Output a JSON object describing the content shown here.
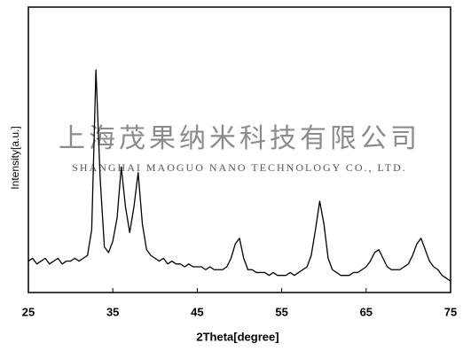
{
  "chart_data": {
    "type": "line",
    "xlabel": "2Theta[degree]",
    "ylabel": "Intensity[a.u.]",
    "watermark": "上海茂果纳米科技有限公司",
    "watermark_en": "SHANGHAI MAOGUO NANO TECHNOLOGY CO., LTD.",
    "color": "#000000",
    "x": [
      25,
      25.5,
      26,
      26.5,
      27,
      27.5,
      28,
      28.5,
      29,
      29.5,
      30,
      30.5,
      31,
      31.5,
      32,
      32.5,
      33,
      33.5,
      34,
      34.5,
      35,
      35.5,
      36,
      36.5,
      37,
      37.5,
      38,
      38.5,
      39,
      39.5,
      40,
      40.5,
      41,
      41.5,
      42,
      42.5,
      43,
      43.5,
      44,
      44.5,
      45,
      45.5,
      46,
      46.5,
      47,
      47.5,
      48,
      48.5,
      49,
      49.5,
      50,
      50.5,
      51,
      51.5,
      52,
      52.5,
      53,
      53.5,
      54,
      54.5,
      55,
      55.5,
      56,
      56.5,
      57,
      57.5,
      58,
      58.5,
      59,
      59.5,
      60,
      60.5,
      61,
      61.5,
      62,
      62.5,
      63,
      63.5,
      64,
      64.5,
      65,
      65.5,
      66,
      66.5,
      67,
      67.5,
      68,
      68.5,
      69,
      69.5,
      70,
      70.5,
      71,
      71.5,
      72,
      72.5,
      73,
      73.5,
      74,
      74.5,
      75
    ],
    "values": [
      11,
      12,
      10,
      11,
      12,
      10,
      11,
      12,
      10,
      11,
      11,
      12,
      11,
      12,
      13,
      22,
      78,
      40,
      16,
      14,
      18,
      26,
      44,
      30,
      21,
      30,
      42,
      24,
      15,
      13,
      12,
      11,
      12,
      10,
      11,
      10,
      10,
      9,
      10,
      9,
      9,
      9,
      8,
      9,
      8,
      8,
      8,
      9,
      12,
      17,
      19,
      12,
      8,
      8,
      7,
      7,
      7,
      6,
      7,
      6,
      6,
      6,
      7,
      6,
      7,
      8,
      9,
      13,
      22,
      32,
      24,
      12,
      8,
      7,
      6,
      6,
      6,
      7,
      7,
      8,
      9,
      11,
      14,
      15,
      12,
      9,
      8,
      8,
      8,
      9,
      10,
      13,
      17,
      19,
      15,
      11,
      9,
      8,
      6,
      5,
      4
    ],
    "xlim": [
      25,
      75
    ],
    "xticks": [
      25,
      35,
      45,
      55,
      65,
      75
    ],
    "ylim": [
      0,
      100
    ]
  }
}
